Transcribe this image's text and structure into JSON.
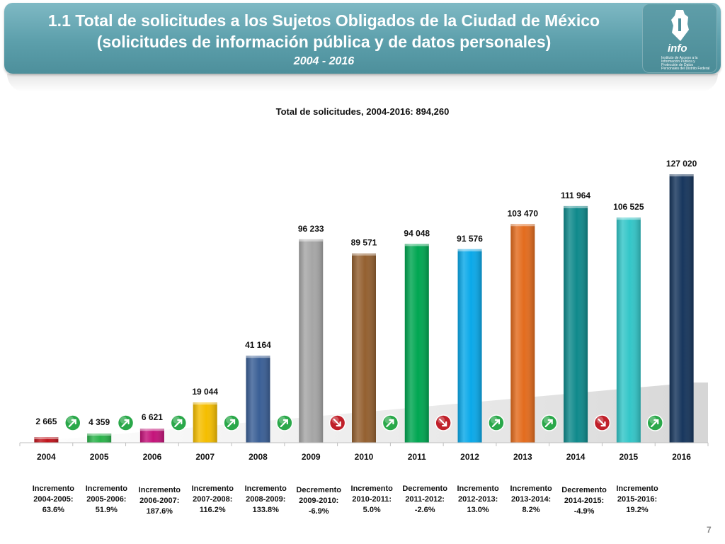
{
  "header": {
    "title_line1": "1.1 Total de solicitudes a los Sujetos Obligados de la Ciudad de México",
    "title_line2": "(solicitudes de información pública y de datos personales)",
    "subtitle": "2004 - 2016",
    "logo_text": "info",
    "logo_subtext": "Instituto de Acceso a la Información Pública y Protección de Datos Personales del Distrito Federal"
  },
  "page_number": "7",
  "colors": {
    "header_bg": "#5c9fab",
    "arrow_up": "#2aa84a",
    "arrow_down": "#c0202a"
  },
  "chart_data": {
    "type": "bar",
    "title": "Total de solicitudes, 2004-2016: 894,260",
    "categories": [
      "2004",
      "2005",
      "2006",
      "2007",
      "2008",
      "2009",
      "2010",
      "2011",
      "2012",
      "2013",
      "2014",
      "2015",
      "2016"
    ],
    "values": [
      2665,
      4359,
      6621,
      19044,
      41164,
      96233,
      89571,
      94048,
      91576,
      103470,
      111964,
      106525,
      127020
    ],
    "value_labels": [
      "2 665",
      "4 359",
      "6 621",
      "19 044",
      "41 164",
      "96 233",
      "89 571",
      "94 048",
      "91 576",
      "103 470",
      "111 964",
      "106 525",
      "127 020"
    ],
    "bar_colors": [
      "#c0141c",
      "#2bb34b",
      "#c4137a",
      "#f5be00",
      "#3a5f96",
      "#a6a6a6",
      "#946030",
      "#00a651",
      "#0aa9e9",
      "#e36c1e",
      "#0f8a8c",
      "#33c6c8",
      "#17365d"
    ],
    "ylim": [
      0,
      135000
    ],
    "grid": false,
    "changes": [
      {
        "kind": "Incremento",
        "period": "2004-2005:",
        "pct": "63.6%",
        "dir": "up"
      },
      {
        "kind": "Incremento",
        "period": "2005-2006:",
        "pct": "51.9%",
        "dir": "up"
      },
      {
        "kind": "Incremento",
        "period": "2006-2007:",
        "pct": "187.6%",
        "dir": "up"
      },
      {
        "kind": "Incremento",
        "period": "2007-2008:",
        "pct": "116.2%",
        "dir": "up"
      },
      {
        "kind": "Incremento",
        "period": "2008-2009:",
        "pct": "133.8%",
        "dir": "up"
      },
      {
        "kind": "Decremento",
        "period": "2009-2010:",
        "pct": "-6.9%",
        "dir": "down"
      },
      {
        "kind": "Incremento",
        "period": "2010-2011:",
        "pct": "5.0%",
        "dir": "up"
      },
      {
        "kind": "Decremento",
        "period": "2011-2012:",
        "pct": "-2.6%",
        "dir": "down"
      },
      {
        "kind": "Incremento",
        "period": "2012-2013:",
        "pct": "13.0%",
        "dir": "up"
      },
      {
        "kind": "Incremento",
        "period": "2013-2014:",
        "pct": "8.2%",
        "dir": "up"
      },
      {
        "kind": "Decremento",
        "period": "2014-2015:",
        "pct": "-4.9%",
        "dir": "down"
      },
      {
        "kind": "Incremento",
        "period": "2015-2016:",
        "pct": "19.2%",
        "dir": "up"
      }
    ]
  }
}
